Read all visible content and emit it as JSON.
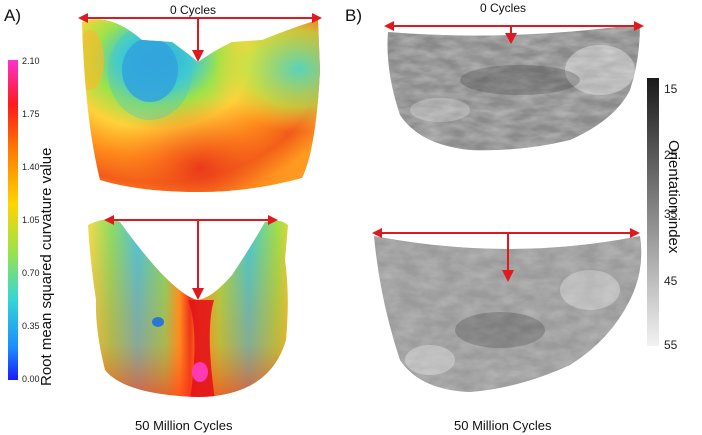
{
  "panels": [
    {
      "label": "A)",
      "colorbar": {
        "title": "Root mean squared  curvature value",
        "ticks": [
          "2.10",
          "1.75",
          "1.40",
          "1.05",
          "0.70",
          "0.35",
          "0.00"
        ],
        "colors": [
          "#ff33cc",
          "#ff1a1a",
          "#ff7a00",
          "#ffd400",
          "#99e34d",
          "#33d6d6",
          "#1a8cff",
          "#1a1aff"
        ]
      },
      "top_caption": "0 Cycles",
      "bottom_caption": "50 Million Cycles"
    },
    {
      "label": "B)",
      "colorbar": {
        "title": "Orientation index",
        "ticks": [
          "15",
          "25",
          "35",
          "45",
          "55"
        ],
        "colors": [
          "#1a1a1a",
          "#f2f2f2"
        ]
      },
      "top_caption": "0 Cycles",
      "bottom_caption": "50 Million Cycles"
    }
  ],
  "accent_color": "#e0191f"
}
